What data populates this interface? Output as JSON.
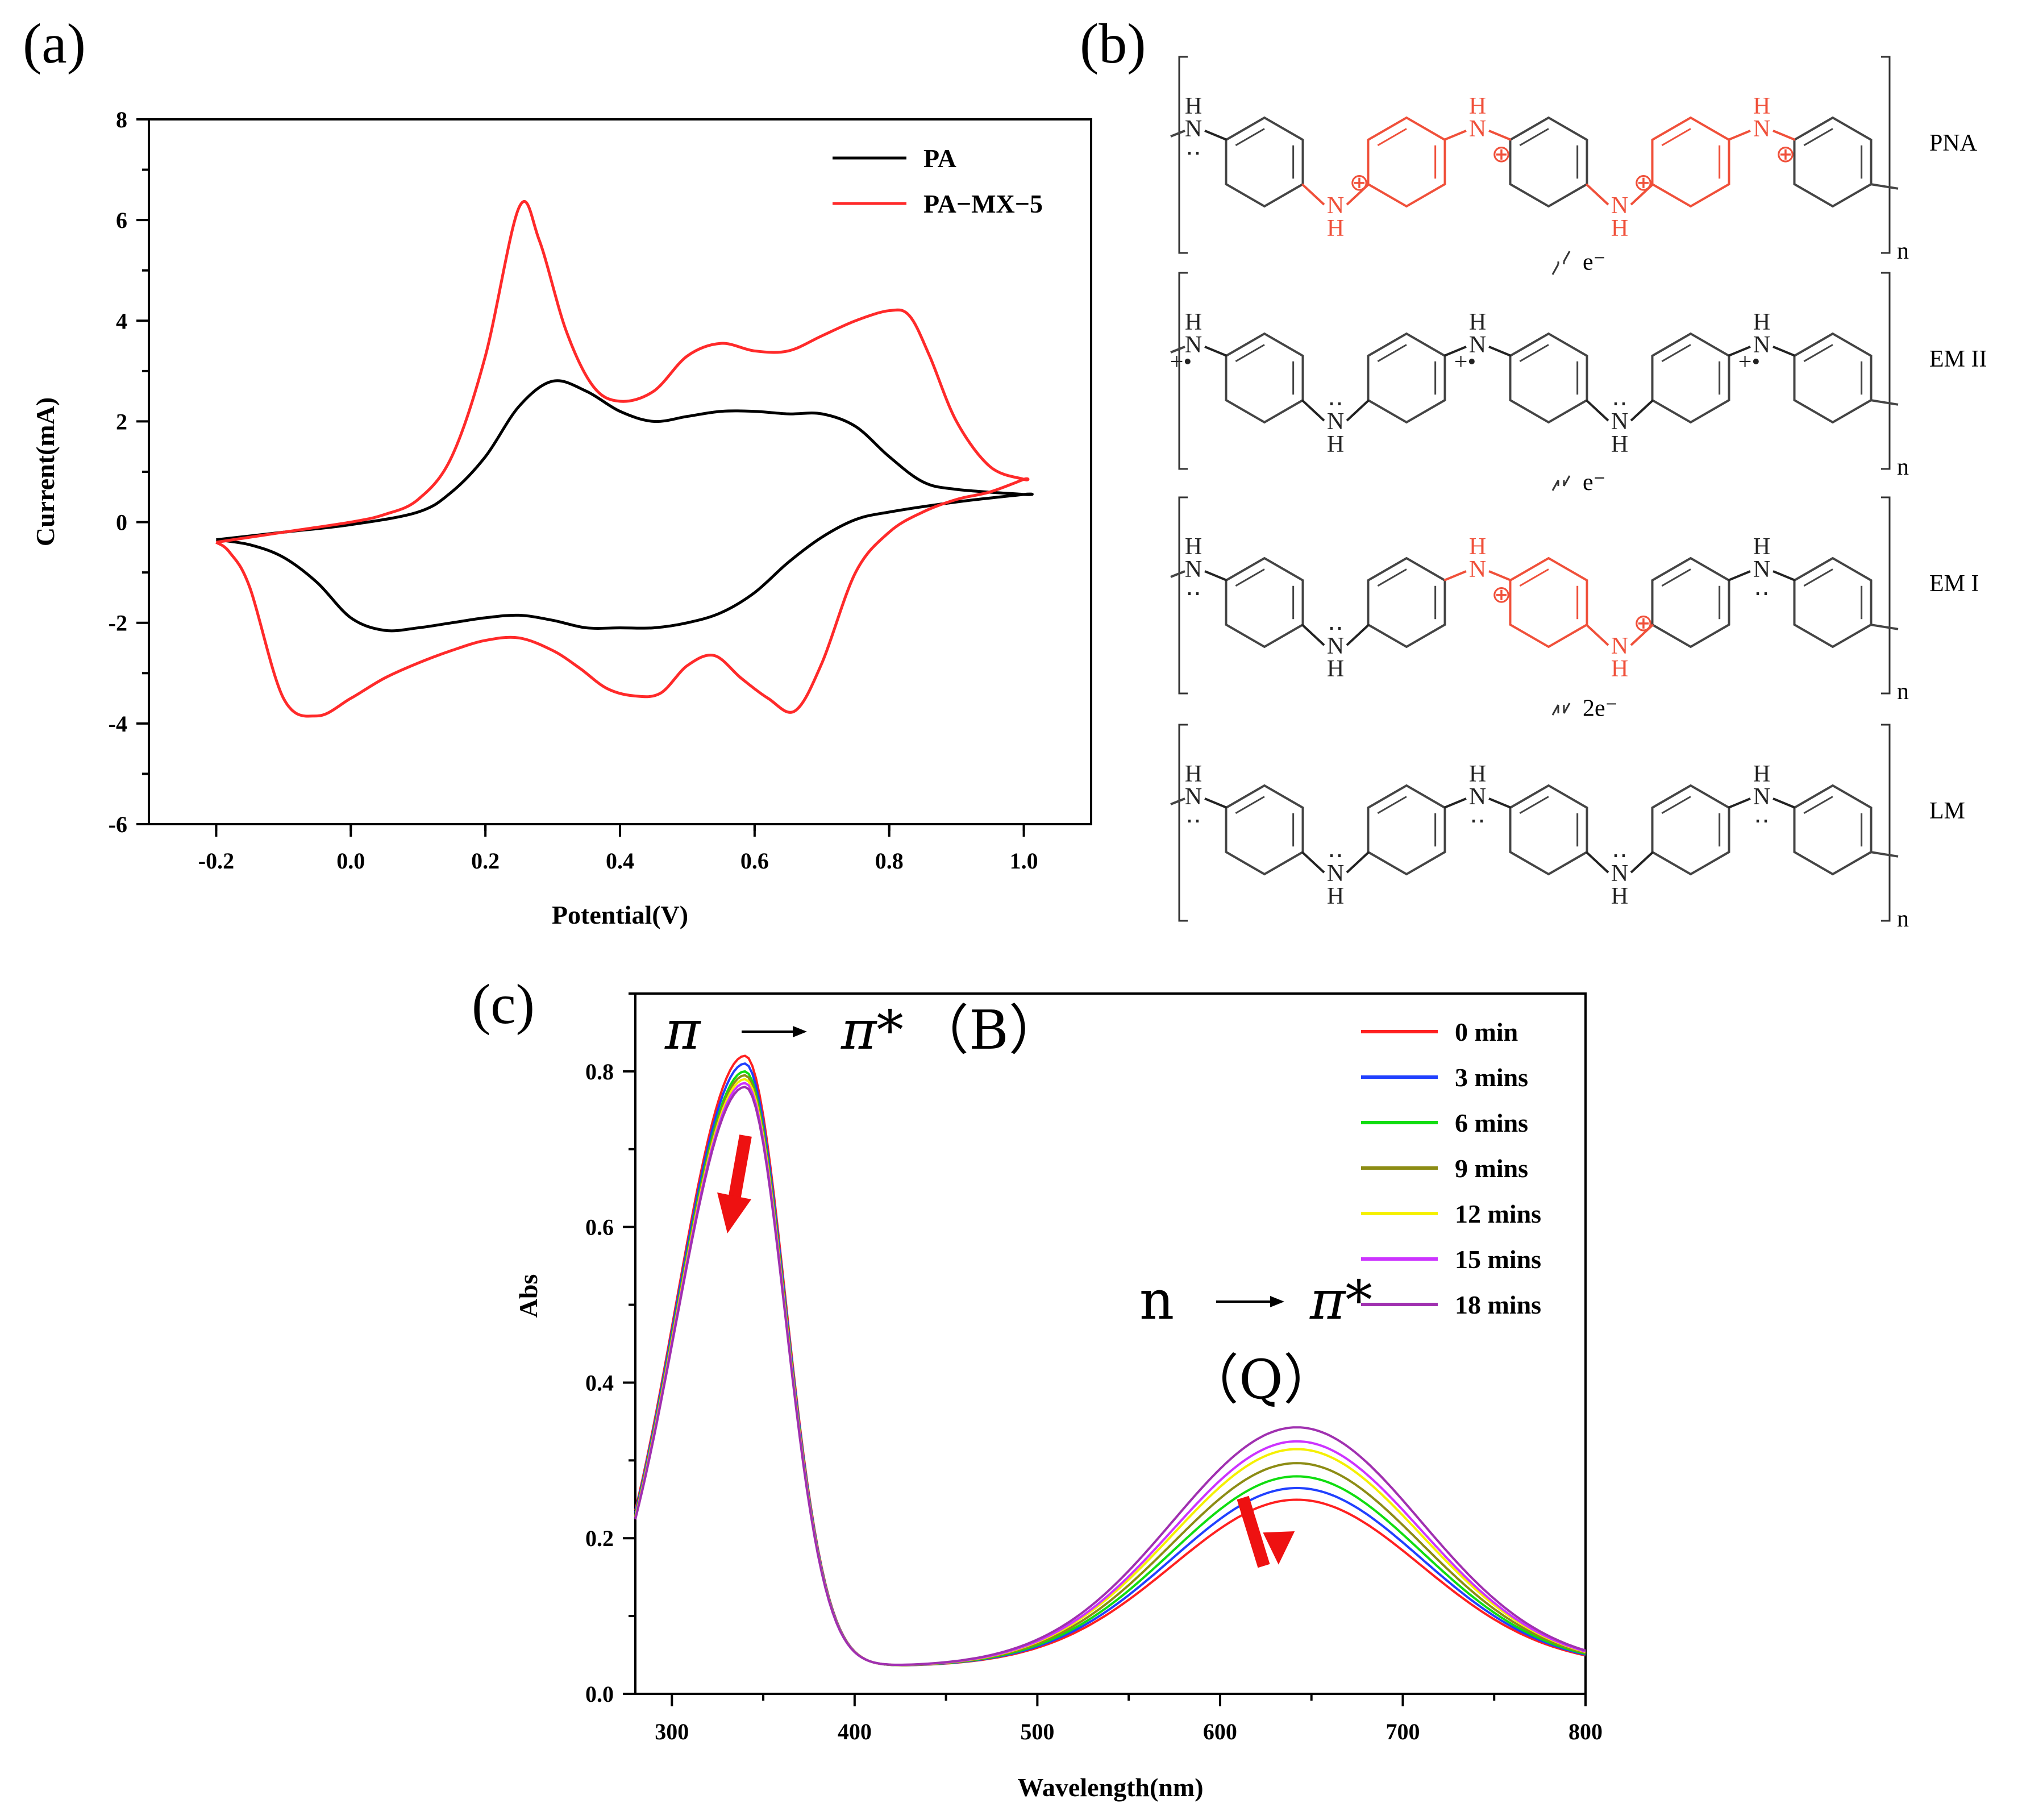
{
  "panels": {
    "a": "(a)",
    "b": "(b)",
    "c": "(c)"
  },
  "colors": {
    "black": "#000000",
    "red": "#ff2a2a",
    "chem_red": "#f0503a"
  },
  "chart_data": [
    {
      "type": "line",
      "title": "",
      "xlabel": "Potential(V)",
      "ylabel": "Current(mA)",
      "xlim": [
        -0.3,
        1.1
      ],
      "ylim": [
        -6,
        8
      ],
      "xticks": [
        "-0.2",
        "0.0",
        "0.2",
        "0.4",
        "0.6",
        "0.8",
        "1.0"
      ],
      "xtick_values": [
        -0.2,
        0.0,
        0.2,
        0.4,
        0.6,
        0.8,
        1.0
      ],
      "yticks": [
        "-6",
        "-4",
        "-2",
        "0",
        "2",
        "4",
        "6",
        "8"
      ],
      "ytick_values": [
        -6,
        -4,
        -2,
        0,
        2,
        4,
        6,
        8
      ],
      "legend_position": "top-right",
      "series": [
        {
          "name": "PA",
          "color": "#000000",
          "points": [
            [
              -0.2,
              -0.35
            ],
            [
              -0.1,
              -0.2
            ],
            [
              0.0,
              -0.05
            ],
            [
              0.1,
              0.2
            ],
            [
              0.15,
              0.6
            ],
            [
              0.2,
              1.3
            ],
            [
              0.25,
              2.3
            ],
            [
              0.3,
              2.8
            ],
            [
              0.35,
              2.6
            ],
            [
              0.4,
              2.2
            ],
            [
              0.45,
              2.0
            ],
            [
              0.5,
              2.1
            ],
            [
              0.55,
              2.2
            ],
            [
              0.6,
              2.2
            ],
            [
              0.65,
              2.15
            ],
            [
              0.7,
              2.15
            ],
            [
              0.75,
              1.9
            ],
            [
              0.8,
              1.3
            ],
            [
              0.85,
              0.8
            ],
            [
              0.9,
              0.65
            ],
            [
              1.0,
              0.55
            ],
            [
              1.0,
              0.55
            ],
            [
              0.9,
              0.4
            ],
            [
              0.8,
              0.2
            ],
            [
              0.75,
              0.05
            ],
            [
              0.7,
              -0.3
            ],
            [
              0.65,
              -0.8
            ],
            [
              0.6,
              -1.4
            ],
            [
              0.55,
              -1.8
            ],
            [
              0.5,
              -2.0
            ],
            [
              0.45,
              -2.1
            ],
            [
              0.4,
              -2.1
            ],
            [
              0.35,
              -2.1
            ],
            [
              0.3,
              -1.95
            ],
            [
              0.25,
              -1.85
            ],
            [
              0.2,
              -1.9
            ],
            [
              0.15,
              -2.0
            ],
            [
              0.1,
              -2.1
            ],
            [
              0.05,
              -2.15
            ],
            [
              0.0,
              -1.9
            ],
            [
              -0.05,
              -1.2
            ],
            [
              -0.1,
              -0.7
            ],
            [
              -0.15,
              -0.45
            ],
            [
              -0.2,
              -0.35
            ]
          ]
        },
        {
          "name": "PA−MX−5",
          "color": "#ff2a2a",
          "points": [
            [
              -0.2,
              -0.4
            ],
            [
              -0.1,
              -0.2
            ],
            [
              0.0,
              0.0
            ],
            [
              0.05,
              0.15
            ],
            [
              0.1,
              0.45
            ],
            [
              0.15,
              1.3
            ],
            [
              0.2,
              3.3
            ],
            [
              0.25,
              6.25
            ],
            [
              0.28,
              5.6
            ],
            [
              0.32,
              3.8
            ],
            [
              0.36,
              2.7
            ],
            [
              0.4,
              2.4
            ],
            [
              0.45,
              2.6
            ],
            [
              0.5,
              3.3
            ],
            [
              0.55,
              3.55
            ],
            [
              0.6,
              3.4
            ],
            [
              0.65,
              3.4
            ],
            [
              0.7,
              3.7
            ],
            [
              0.75,
              4.0
            ],
            [
              0.8,
              4.2
            ],
            [
              0.83,
              4.1
            ],
            [
              0.86,
              3.3
            ],
            [
              0.9,
              2.0
            ],
            [
              0.95,
              1.1
            ],
            [
              1.0,
              0.85
            ],
            [
              1.0,
              0.85
            ],
            [
              0.95,
              0.6
            ],
            [
              0.9,
              0.45
            ],
            [
              0.85,
              0.2
            ],
            [
              0.8,
              -0.2
            ],
            [
              0.75,
              -1.0
            ],
            [
              0.7,
              -2.8
            ],
            [
              0.66,
              -3.75
            ],
            [
              0.62,
              -3.5
            ],
            [
              0.58,
              -3.1
            ],
            [
              0.54,
              -2.65
            ],
            [
              0.5,
              -2.85
            ],
            [
              0.46,
              -3.4
            ],
            [
              0.42,
              -3.45
            ],
            [
              0.38,
              -3.3
            ],
            [
              0.34,
              -2.9
            ],
            [
              0.3,
              -2.55
            ],
            [
              0.25,
              -2.3
            ],
            [
              0.2,
              -2.35
            ],
            [
              0.15,
              -2.55
            ],
            [
              0.1,
              -2.8
            ],
            [
              0.05,
              -3.1
            ],
            [
              0.0,
              -3.5
            ],
            [
              -0.05,
              -3.85
            ],
            [
              -0.1,
              -3.5
            ],
            [
              -0.15,
              -1.3
            ],
            [
              -0.18,
              -0.6
            ],
            [
              -0.2,
              -0.4
            ]
          ]
        }
      ]
    },
    {
      "type": "line",
      "title": "",
      "xlabel": "Wavelength(nm)",
      "ylabel": "Abs",
      "xlim": [
        280,
        800
      ],
      "ylim": [
        0.0,
        0.9
      ],
      "xticks": [
        "300",
        "400",
        "500",
        "600",
        "700",
        "800"
      ],
      "xtick_values": [
        300,
        400,
        500,
        600,
        700,
        800
      ],
      "yticks": [
        "0.0",
        "0.2",
        "0.4",
        "0.6",
        "0.8"
      ],
      "ytick_values": [
        0.0,
        0.2,
        0.4,
        0.6,
        0.8
      ],
      "legend_position": "top-right",
      "series": [
        {
          "name": "0 min",
          "color": "#ff2020",
          "b_peak": 0.82,
          "q_peak": 0.225
        },
        {
          "name": "3 mins",
          "color": "#2040ff",
          "b_peak": 0.81,
          "q_peak": 0.24
        },
        {
          "name": "6 mins",
          "color": "#10dd10",
          "b_peak": 0.8,
          "q_peak": 0.255
        },
        {
          "name": "9 mins",
          "color": "#8c8c14",
          "b_peak": 0.795,
          "q_peak": 0.272
        },
        {
          "name": "12 mins",
          "color": "#f5f000",
          "b_peak": 0.79,
          "q_peak": 0.29
        },
        {
          "name": "15 mins",
          "color": "#cc33ff",
          "b_peak": 0.785,
          "q_peak": 0.3
        },
        {
          "name": "18 mins",
          "color": "#a030b0",
          "b_peak": 0.78,
          "q_peak": 0.318
        }
      ],
      "annotations": {
        "b_band": {
          "pi": "π",
          "pistar": "π*",
          "label": "（B）"
        },
        "q_band": {
          "n": "n",
          "pistar": "π*",
          "label": "（Q）"
        }
      }
    }
  ],
  "scheme": {
    "states": [
      {
        "label": "PNA",
        "arrow": "e⁻"
      },
      {
        "label": "EM II",
        "arrow": "e⁻"
      },
      {
        "label": "EM I",
        "arrow": "2e⁻"
      },
      {
        "label": "LM",
        "arrow": ""
      }
    ],
    "atoms": {
      "N": "N",
      "H": "H",
      "plus": "⊕",
      "dots": "‥",
      "radical": "+•",
      "n": "n"
    }
  }
}
